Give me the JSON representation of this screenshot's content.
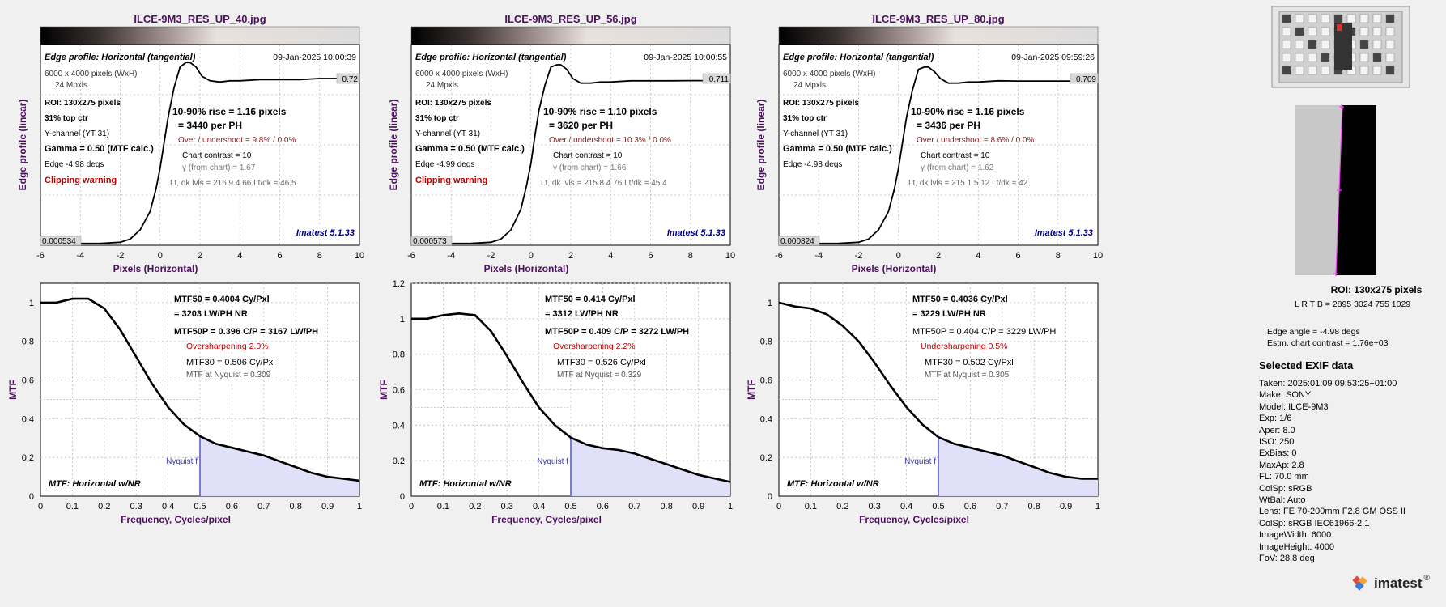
{
  "colors": {
    "title": "#4b0f5e",
    "warn": "#c00000",
    "axis_label": "#4b0f5e",
    "imatest": "#00008b",
    "curve": "#000000",
    "nyquist_fill": "#e0e0f8",
    "nyquist_line": "#7b7bd0",
    "ref_line": "#9fd8d8"
  },
  "panels": [
    {
      "title": "ILCE-9M3_RES_UP_40.jpg",
      "edge": {
        "heading": "Edge profile: Horizontal (tangential)",
        "date": "09-Jan-2025 10:00:39",
        "dims": "6000 x 4000 pixels (WxH)",
        "mpxls": "24 Mpxls",
        "roi": "ROI:  130x275 pixels",
        "pos": "31% top ctr",
        "channel": "Y-channel  (YT 31)",
        "gamma": "Gamma = 0.50 (MTF calc.)",
        "edge_angle": "Edge  -4.98 degs",
        "clip": "Clipping warning",
        "rise": "10-90% rise = 1.16 pixels",
        "per_ph": "=   3440 per PH",
        "overshoot": "Over / undershoot =  9.8% /  0.0%",
        "contrast": "Chart contrast = 10",
        "gamma_chart": "γ (from chart) =  1.67",
        "lt_dk": "Lt, dk lvls = 216.9  4.66  Lt/dk = 46.5",
        "high_val": "0.72",
        "low_val": "0.000534",
        "imatest": "Imatest 5.1.33"
      },
      "mtf": {
        "mtf50": "MTF50 = 0.4004 Cy/Pxl",
        "lwph": "= 3203 LW/PH  NR",
        "mtf50p": "MTF50P = 0.396 C/P = 3167 LW/PH",
        "sharpen": "Oversharpening  2.0%",
        "mtf30": "MTF30 = 0.506 Cy/Pxl",
        "nyq_mtf": "MTF at Nyquist = 0.309",
        "nyq_label": "Nyquist f",
        "footer": "MTF: Horizontal w/NR"
      }
    },
    {
      "title": "ILCE-9M3_RES_UP_56.jpg",
      "edge": {
        "heading": "Edge profile: Horizontal (tangential)",
        "date": "09-Jan-2025 10:00:55",
        "dims": "6000 x 4000 pixels (WxH)",
        "mpxls": "24 Mpxls",
        "roi": "ROI:  130x275 pixels",
        "pos": "31% top ctr",
        "channel": "Y-channel  (YT 31)",
        "gamma": "Gamma = 0.50 (MTF calc.)",
        "edge_angle": "Edge  -4.99 degs",
        "clip": "Clipping warning",
        "rise": "10-90% rise = 1.10 pixels",
        "per_ph": "=   3620 per PH",
        "overshoot": "Over / undershoot = 10.3% /  0.0%",
        "contrast": "Chart contrast = 10",
        "gamma_chart": "γ (from chart) =  1.66",
        "lt_dk": "Lt, dk lvls = 215.8  4.76  Lt/dk = 45.4",
        "high_val": "0.711",
        "low_val": "0.000573",
        "imatest": "Imatest 5.1.33"
      },
      "mtf": {
        "mtf50": "MTF50 = 0.414 Cy/Pxl",
        "lwph": "= 3312 LW/PH  NR",
        "mtf50p": "MTF50P = 0.409 C/P = 3272 LW/PH",
        "sharpen": "Oversharpening  2.2%",
        "mtf30": "MTF30 = 0.526 Cy/Pxl",
        "nyq_mtf": "MTF at Nyquist = 0.329",
        "nyq_label": "Nyquist f",
        "footer": "MTF: Horizontal w/NR"
      }
    },
    {
      "title": "ILCE-9M3_RES_UP_80.jpg",
      "edge": {
        "heading": "Edge profile: Horizontal (tangential)",
        "date": "09-Jan-2025 09:59:26",
        "dims": "6000 x 4000 pixels (WxH)",
        "mpxls": "24 Mpxls",
        "roi": "ROI:  130x275 pixels",
        "pos": "31% top ctr",
        "channel": "Y-channel  (YT 31)",
        "gamma": "Gamma = 0.50 (MTF calc.)",
        "edge_angle": "Edge  -4.98 degs",
        "clip": "",
        "rise": "10-90% rise = 1.16 pixels",
        "per_ph": "=   3436 per PH",
        "overshoot": "Over / undershoot =  8.6% /  0.0%",
        "contrast": "Chart contrast = 10",
        "gamma_chart": "γ (from chart) =  1.62",
        "lt_dk": "Lt, dk lvls = 215.1  5.12  Lt/dk = 42",
        "high_val": "0.709",
        "low_val": "0.000824",
        "imatest": "Imatest 5.1.33"
      },
      "mtf": {
        "mtf50": "MTF50 = 0.4036 Cy/Pxl",
        "lwph": "= 3229 LW/PH  NR",
        "mtf50p": "MTF50P = 0.404 C/P = 3229 LW/PH",
        "sharpen": "Undersharpening  0.5%",
        "mtf30": "MTF30 = 0.502 Cy/Pxl",
        "nyq_mtf": "MTF at Nyquist = 0.305",
        "nyq_label": "Nyquist f",
        "footer": "MTF: Horizontal w/NR"
      }
    }
  ],
  "chart_data": [
    {
      "type": "line",
      "title": "Edge profile: Horizontal (tangential)",
      "xlabel": "Pixels (Horizontal)",
      "ylabel": "Edge profile (linear)",
      "xlim": [
        -6,
        10
      ],
      "xticks": [
        -6,
        -4,
        -2,
        0,
        2,
        4,
        6,
        8,
        10
      ],
      "x": [
        -6,
        -3,
        -2,
        -1.5,
        -1,
        -0.5,
        -0.2,
        0,
        0.2,
        0.4,
        0.7,
        1,
        1.3,
        1.5,
        1.8,
        2.1,
        2.5,
        3,
        3.5,
        4,
        5,
        6,
        7,
        8,
        9,
        10
      ],
      "series": [
        {
          "name": "ILCE-9M3_RES_UP_40.jpg",
          "values": [
            0.0005,
            0.001,
            0.006,
            0.02,
            0.06,
            0.14,
            0.24,
            0.33,
            0.44,
            0.55,
            0.68,
            0.77,
            0.79,
            0.79,
            0.77,
            0.73,
            0.71,
            0.705,
            0.71,
            0.71,
            0.715,
            0.715,
            0.715,
            0.72,
            0.72,
            0.72
          ]
        },
        {
          "name": "ILCE-9M3_RES_UP_56.jpg",
          "values": [
            0.0006,
            0.001,
            0.006,
            0.02,
            0.06,
            0.15,
            0.26,
            0.35,
            0.47,
            0.58,
            0.69,
            0.77,
            0.78,
            0.78,
            0.76,
            0.72,
            0.7,
            0.7,
            0.705,
            0.705,
            0.71,
            0.71,
            0.71,
            0.711,
            0.711,
            0.711
          ]
        },
        {
          "name": "ILCE-9M3_RES_UP_80.jpg",
          "values": [
            0.0008,
            0.001,
            0.006,
            0.02,
            0.06,
            0.14,
            0.24,
            0.33,
            0.44,
            0.55,
            0.67,
            0.76,
            0.77,
            0.77,
            0.75,
            0.72,
            0.7,
            0.7,
            0.705,
            0.705,
            0.71,
            0.709,
            0.709,
            0.709,
            0.709,
            0.709
          ]
        }
      ]
    },
    {
      "type": "line",
      "title": "MTF",
      "xlabel": "Frequency, Cycles/pixel",
      "ylabel": "MTF",
      "xlim": [
        0,
        1
      ],
      "xticks": [
        0,
        0.1,
        0.2,
        0.3,
        0.4,
        0.5,
        0.6,
        0.7,
        0.8,
        0.9,
        1
      ],
      "x": [
        0,
        0.05,
        0.1,
        0.15,
        0.2,
        0.25,
        0.3,
        0.35,
        0.4,
        0.45,
        0.5,
        0.55,
        0.6,
        0.65,
        0.7,
        0.75,
        0.8,
        0.85,
        0.9,
        0.95,
        1.0
      ],
      "series": [
        {
          "name": "ILCE-9M3_RES_UP_40.jpg",
          "ylim": [
            0,
            1.1
          ],
          "yticks": [
            0,
            0.2,
            0.4,
            0.6,
            0.8,
            1
          ],
          "values": [
            1.0,
            1.0,
            1.02,
            1.02,
            0.97,
            0.86,
            0.72,
            0.58,
            0.46,
            0.37,
            0.31,
            0.27,
            0.25,
            0.23,
            0.21,
            0.18,
            0.15,
            0.12,
            0.1,
            0.09,
            0.08
          ]
        },
        {
          "name": "ILCE-9M3_RES_UP_56.jpg",
          "ylim": [
            0,
            1.2
          ],
          "yticks": [
            0,
            0.2,
            0.4,
            0.6,
            0.8,
            1,
            1.2
          ],
          "values": [
            1.0,
            1.0,
            1.02,
            1.03,
            1.02,
            0.93,
            0.79,
            0.64,
            0.5,
            0.4,
            0.33,
            0.29,
            0.27,
            0.26,
            0.24,
            0.21,
            0.18,
            0.15,
            0.12,
            0.1,
            0.08
          ]
        },
        {
          "name": "ILCE-9M3_RES_UP_80.jpg",
          "ylim": [
            0,
            1.1
          ],
          "yticks": [
            0,
            0.2,
            0.4,
            0.6,
            0.8,
            1
          ],
          "values": [
            1.0,
            0.98,
            0.97,
            0.94,
            0.88,
            0.8,
            0.69,
            0.57,
            0.46,
            0.37,
            0.305,
            0.27,
            0.25,
            0.23,
            0.21,
            0.18,
            0.15,
            0.12,
            0.1,
            0.09,
            0.09
          ]
        }
      ]
    }
  ],
  "roi_info": {
    "roi": "ROI:  130x275 pixels",
    "lrtb": "L R  T B = 2895 3024  755 1029",
    "angle": "Edge angle = -4.98 degs",
    "contrast": "Estm. chart contrast = 1.76e+03"
  },
  "exif": {
    "title": "Selected EXIF data",
    "lines": [
      "Taken: 2025:01:09 09:53:25+01:00",
      "Make:  SONY",
      "Model:  ILCE-9M3",
      "Exp:    1/6",
      "Aper:   8.0",
      "ISO:    250",
      "ExBias: 0",
      "MaxAp: 2.8",
      "FL:     70.0 mm",
      "ColSp: sRGB",
      "WtBal: Auto",
      "Lens:   FE 70-200mm F2.8 GM OSS II",
      "ColSp: sRGB IEC61966-2.1",
      "ImageWidth:   6000",
      "ImageHeight:   4000",
      "FoV:   28.8 deg"
    ]
  },
  "logo": {
    "text": "imatest",
    "mark": "®"
  }
}
